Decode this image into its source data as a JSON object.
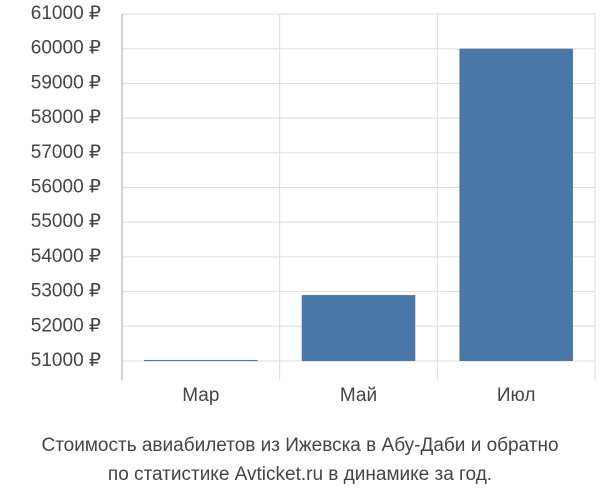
{
  "chart_data": {
    "type": "bar",
    "title_lines": [
      "Стоимость авиабилетов из Ижевска в Абу-Даби и обратно",
      "по статистике Avticket.ru в динамике за год."
    ],
    "categories": [
      "Мар",
      "Май",
      "Июл"
    ],
    "values": [
      51030,
      52900,
      60000
    ],
    "color": "#4a76a8",
    "ylim": [
      51000,
      61000
    ],
    "yticks": [
      {
        "value": 51000,
        "label": "51000 ₽"
      },
      {
        "value": 52000,
        "label": "52000 ₽"
      },
      {
        "value": 53000,
        "label": "53000 ₽"
      },
      {
        "value": 54000,
        "label": "54000 ₽"
      },
      {
        "value": 55000,
        "label": "55000 ₽"
      },
      {
        "value": 56000,
        "label": "56000 ₽"
      },
      {
        "value": 57000,
        "label": "57000 ₽"
      },
      {
        "value": 58000,
        "label": "58000 ₽"
      },
      {
        "value": 59000,
        "label": "59000 ₽"
      },
      {
        "value": 60000,
        "label": "60000 ₽"
      },
      {
        "value": 61000,
        "label": "61000 ₽"
      }
    ],
    "grid": true
  }
}
